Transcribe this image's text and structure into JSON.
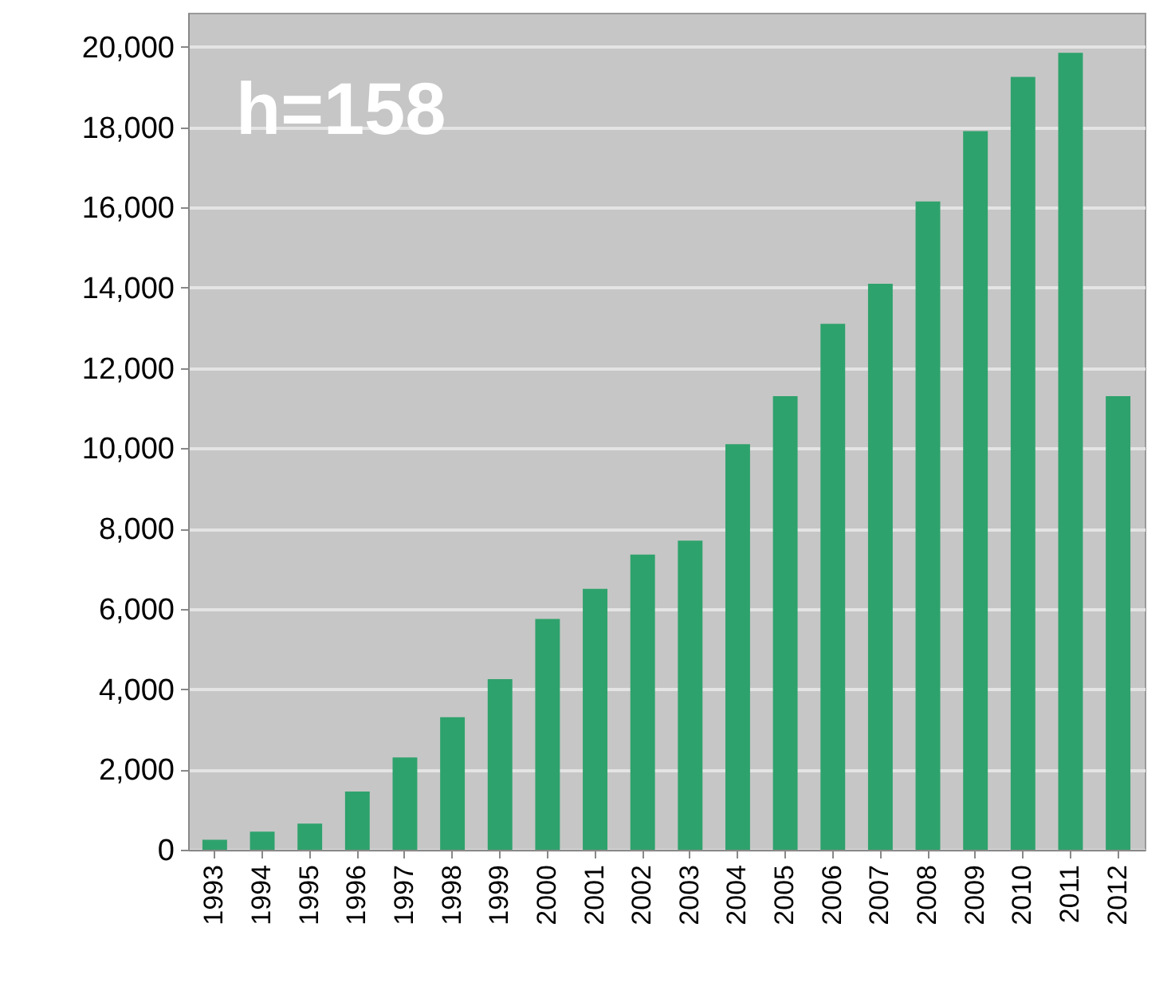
{
  "chart_data": {
    "type": "bar",
    "categories": [
      "1993",
      "1994",
      "1995",
      "1996",
      "1997",
      "1998",
      "1999",
      "2000",
      "2001",
      "2002",
      "2003",
      "2004",
      "2005",
      "2006",
      "2007",
      "2008",
      "2009",
      "2010",
      "2011",
      "2012"
    ],
    "values": [
      250,
      450,
      650,
      1450,
      2300,
      3300,
      4250,
      5750,
      6500,
      7350,
      7700,
      10100,
      11300,
      13100,
      14100,
      16150,
      17900,
      19250,
      19850,
      11300
    ],
    "color": "#2ea26c",
    "ylim": [
      0,
      20850
    ],
    "yticks": [
      {
        "value": 0,
        "label": "0"
      },
      {
        "value": 2000,
        "label": "2,000"
      },
      {
        "value": 4000,
        "label": "4,000"
      },
      {
        "value": 6000,
        "label": "6,000"
      },
      {
        "value": 8000,
        "label": "8,000"
      },
      {
        "value": 10000,
        "label": "10,000"
      },
      {
        "value": 12000,
        "label": "12,000"
      },
      {
        "value": 14000,
        "label": "14,000"
      },
      {
        "value": 16000,
        "label": "16,000"
      },
      {
        "value": 18000,
        "label": "18,000"
      },
      {
        "value": 20000,
        "label": "20,000"
      }
    ],
    "grid": "y",
    "annotations": [
      "h=158"
    ]
  }
}
